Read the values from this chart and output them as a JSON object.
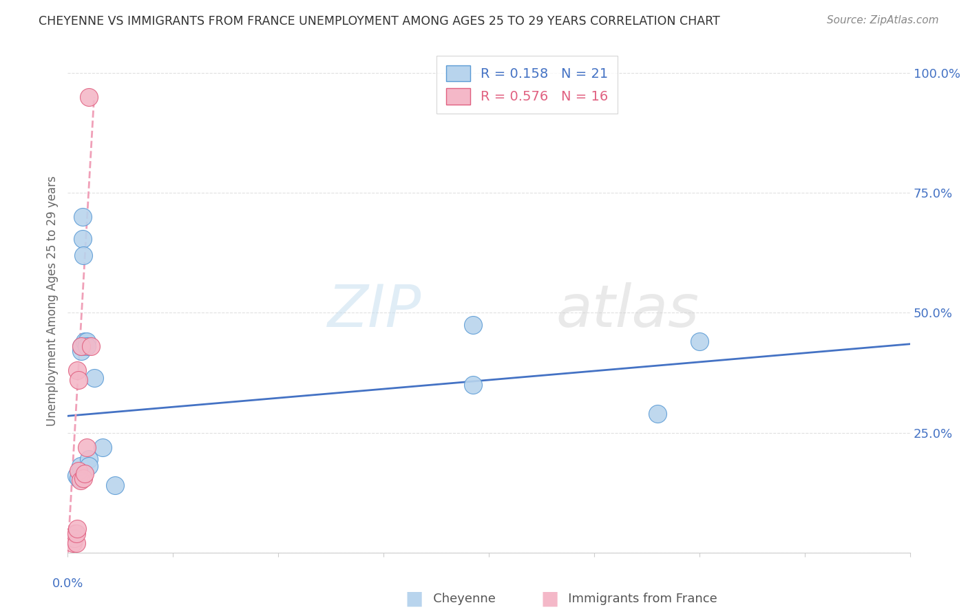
{
  "title": "CHEYENNE VS IMMIGRANTS FROM FRANCE UNEMPLOYMENT AMONG AGES 25 TO 29 YEARS CORRELATION CHART",
  "source": "Source: ZipAtlas.com",
  "ylabel": "Unemployment Among Ages 25 to 29 years",
  "cheyenne_color": "#b8d4ed",
  "cheyenne_edge_color": "#5b9bd5",
  "immigrants_color": "#f4b8c8",
  "immigrants_edge_color": "#e06080",
  "cheyenne_line_color": "#4472c4",
  "immigrants_line_color": "#f0a0b8",
  "ytick_values": [
    0.0,
    0.25,
    0.5,
    0.75,
    1.0
  ],
  "ytick_labels": [
    "",
    "25.0%",
    "50.0%",
    "75.0%",
    "100.0%"
  ],
  "right_axis_color": "#4472c4",
  "cheyenne_scatter_x": [
    0.005,
    0.008,
    0.01,
    0.012,
    0.013,
    0.013,
    0.014,
    0.014,
    0.015,
    0.016,
    0.018,
    0.018,
    0.02,
    0.02,
    0.025,
    0.033,
    0.045,
    0.385,
    0.385,
    0.56,
    0.6
  ],
  "cheyenne_scatter_y": [
    0.03,
    0.16,
    0.155,
    0.18,
    0.42,
    0.43,
    0.7,
    0.655,
    0.62,
    0.44,
    0.44,
    0.43,
    0.195,
    0.18,
    0.365,
    0.22,
    0.14,
    0.35,
    0.475,
    0.29,
    0.44
  ],
  "immigrants_scatter_x": [
    0.005,
    0.006,
    0.007,
    0.008,
    0.008,
    0.009,
    0.009,
    0.01,
    0.01,
    0.012,
    0.013,
    0.015,
    0.016,
    0.018,
    0.02,
    0.022
  ],
  "immigrants_scatter_y": [
    0.02,
    0.03,
    0.04,
    0.02,
    0.04,
    0.05,
    0.38,
    0.36,
    0.17,
    0.15,
    0.43,
    0.155,
    0.165,
    0.22,
    0.95,
    0.43
  ],
  "cheyenne_trend_x": [
    0.0,
    0.8
  ],
  "cheyenne_trend_y": [
    0.285,
    0.435
  ],
  "immigrants_trend_x": [
    0.0,
    0.025
  ],
  "immigrants_trend_y": [
    0.0,
    0.95
  ],
  "xlim": [
    0.0,
    0.8
  ],
  "ylim": [
    0.0,
    1.05
  ],
  "watermark_zip": "ZIP",
  "watermark_atlas": "atlas",
  "background_color": "#ffffff",
  "grid_color": "#e0e0e0",
  "legend_r1": "R = 0.158",
  "legend_n1": "N = 21",
  "legend_r2": "R = 0.576",
  "legend_n2": "N = 16"
}
